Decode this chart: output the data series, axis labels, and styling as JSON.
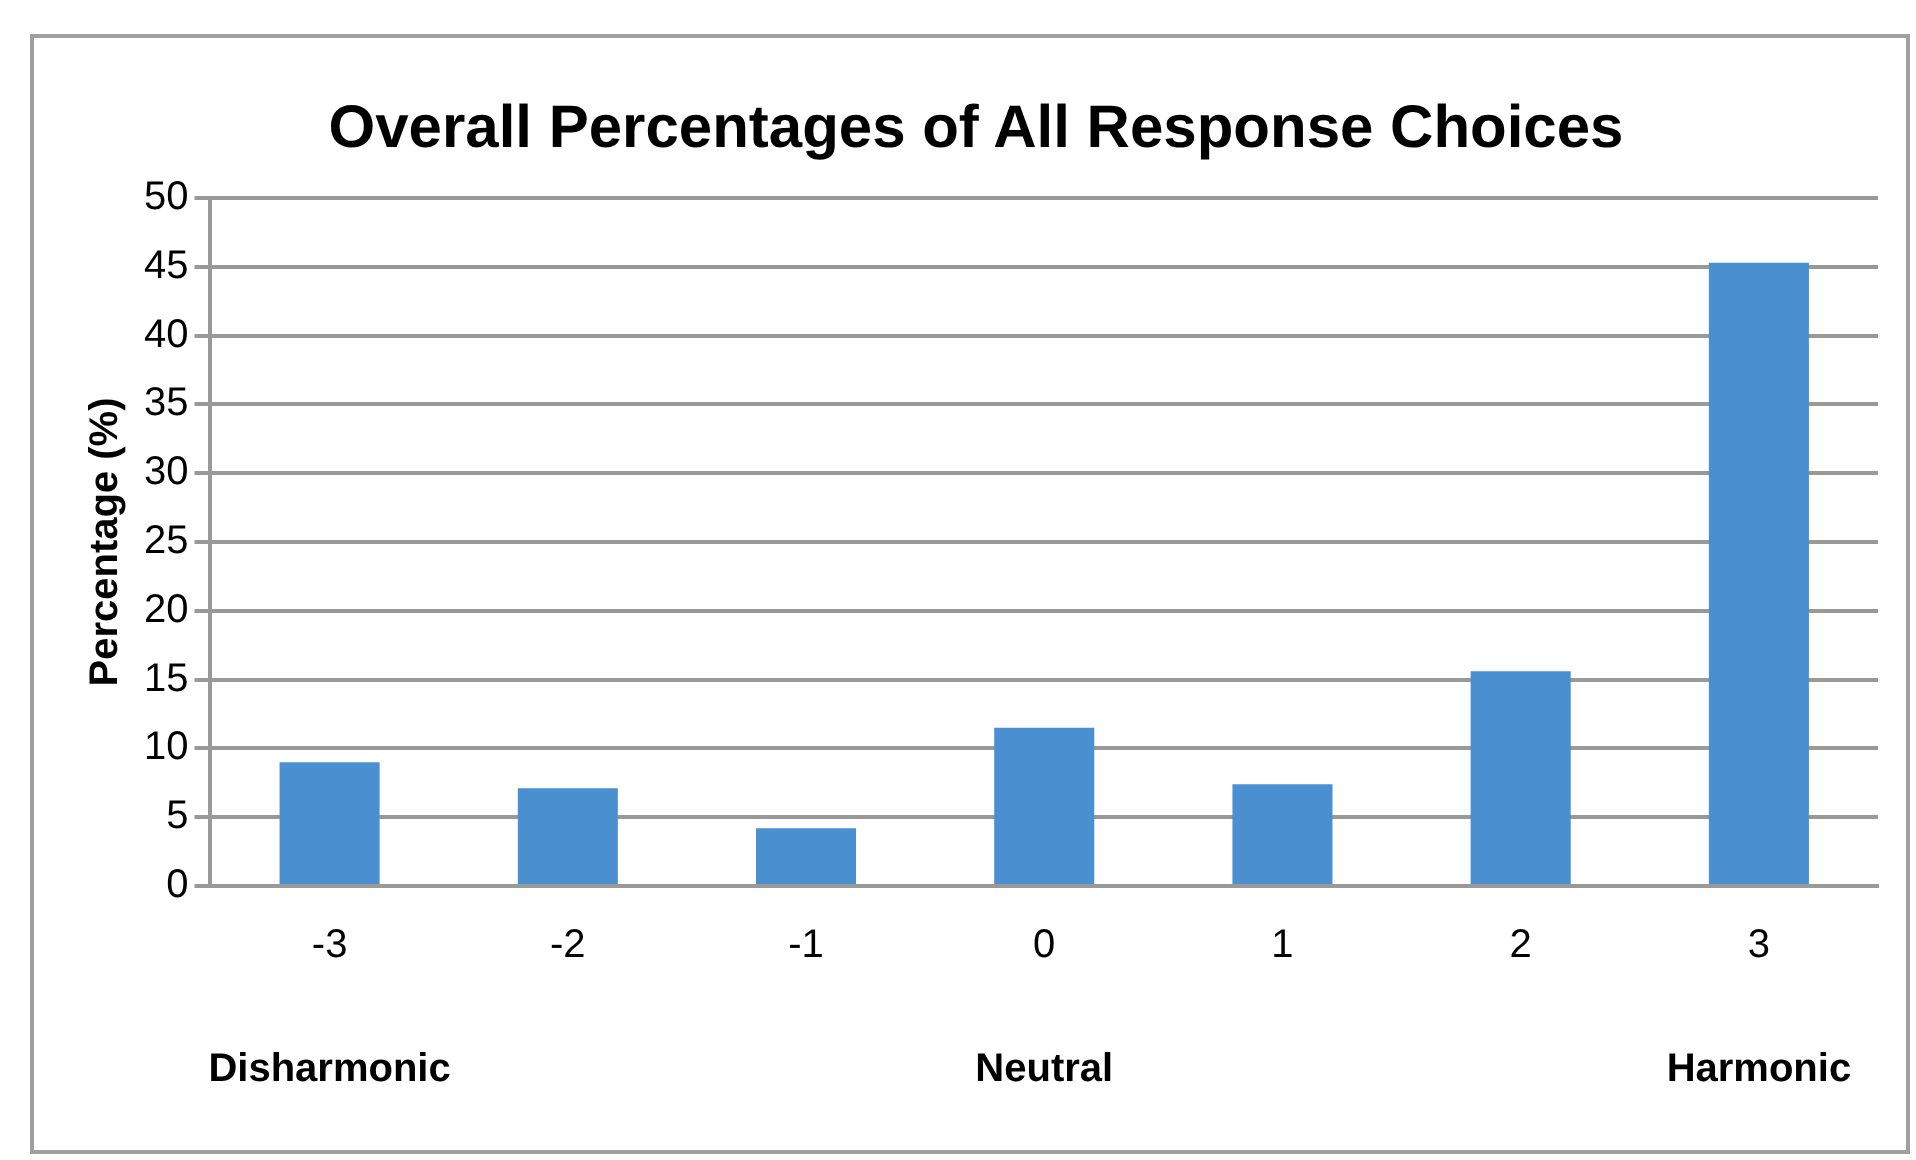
{
  "chart_data": {
    "type": "bar",
    "title": "Overall Percentages of All Response Choices",
    "ylabel": "Percentage (%)",
    "categories": [
      "-3",
      "-2",
      "-1",
      "0",
      "1",
      "2",
      "3"
    ],
    "values": [
      9.0,
      7.1,
      4.2,
      11.5,
      7.4,
      15.6,
      45.3
    ],
    "color": "#4a8fd0",
    "ylim": [
      0,
      50
    ],
    "yticks": [
      0,
      5,
      10,
      15,
      20,
      25,
      30,
      35,
      40,
      45,
      50
    ],
    "grid": "y",
    "annotations": [
      "Disharmonic",
      "Neutral",
      "Harmonic"
    ]
  }
}
